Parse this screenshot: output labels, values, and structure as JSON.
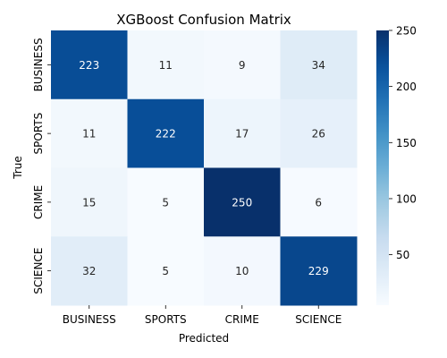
{
  "chart_data": {
    "type": "heatmap",
    "title": "XGBoost Confusion Matrix",
    "xlabel": "Predicted",
    "ylabel": "True",
    "x_categories": [
      "BUSINESS",
      "SPORTS",
      "CRIME",
      "SCIENCE"
    ],
    "y_categories": [
      "BUSINESS",
      "SPORTS",
      "CRIME",
      "SCIENCE"
    ],
    "values": [
      [
        223,
        11,
        9,
        34
      ],
      [
        11,
        222,
        17,
        26
      ],
      [
        15,
        5,
        250,
        6
      ],
      [
        32,
        5,
        10,
        229
      ]
    ],
    "colormap": "Blues",
    "vmin": 5,
    "vmax": 250,
    "colorbar_ticks": [
      50,
      100,
      150,
      200,
      250
    ],
    "colors": {
      "low": "#f7fbff",
      "high": "#08306b"
    }
  }
}
